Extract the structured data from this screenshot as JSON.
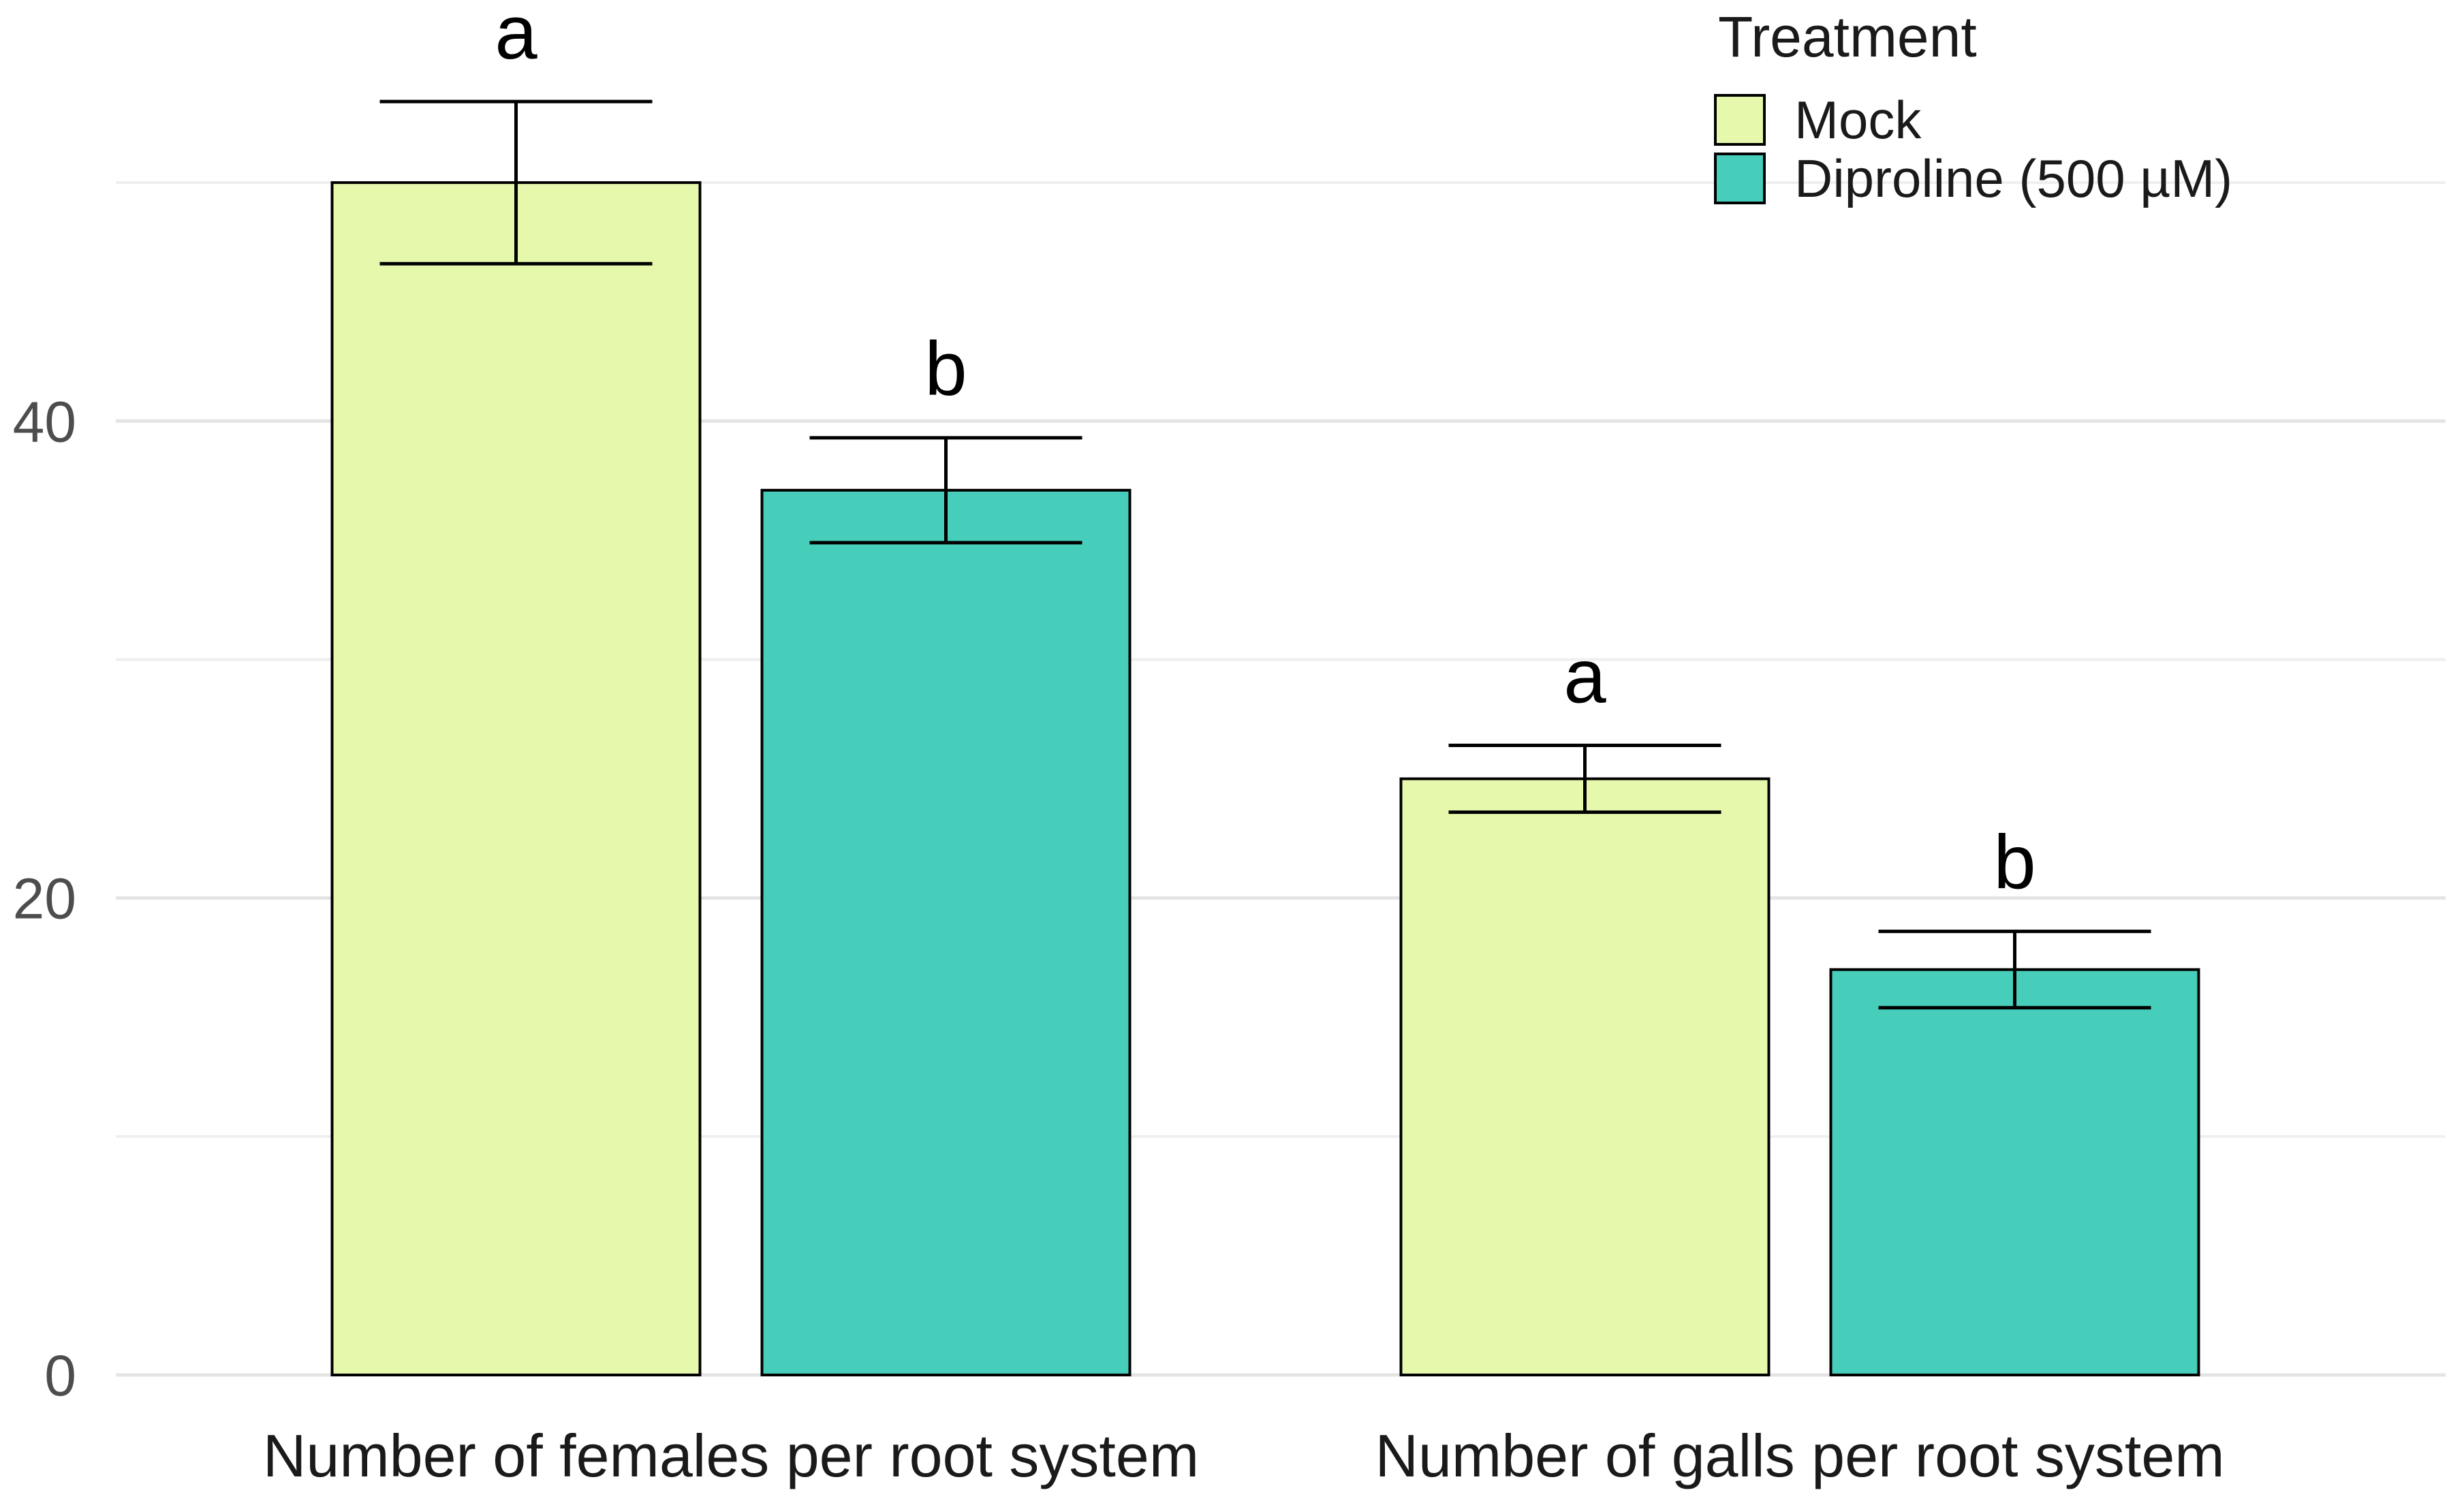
{
  "chart_data": {
    "type": "bar",
    "subtype": "grouped-with-error-bars",
    "title": "",
    "xlabel": "",
    "ylabel": "",
    "categories": [
      "Number of females per root system",
      "Number of galls per root system"
    ],
    "series": [
      {
        "name": "Mock",
        "color": "#e5f8ac",
        "values": [
          50.0,
          25.0
        ],
        "errors": [
          3.4,
          1.4
        ],
        "sig_letters": [
          "a",
          "a"
        ]
      },
      {
        "name": "Diproline (500 µM)",
        "color": "#46ceba",
        "values": [
          37.1,
          17.0
        ],
        "errors": [
          2.2,
          1.6
        ],
        "sig_letters": [
          "b",
          "b"
        ]
      }
    ],
    "ylim": [
      0,
      57.4
    ],
    "yticks": [
      0,
      20,
      40
    ],
    "yticks_minor": [
      10,
      30,
      50
    ],
    "grid": "horizontal major and minor, light gray, no axis lines, no tick marks",
    "legend_title": "Treatment",
    "legend_position": "inside top-right",
    "bar_outline_color": "#000000",
    "error_bar_color": "#000000",
    "axis_text_color": "#4d4d4d",
    "category_text_color": "#1a1a1a",
    "sig_letter_color": "#000000",
    "major_grid_color": "#e4e4e4",
    "minor_grid_color": "#efefef",
    "background_color": "#ffffff"
  }
}
